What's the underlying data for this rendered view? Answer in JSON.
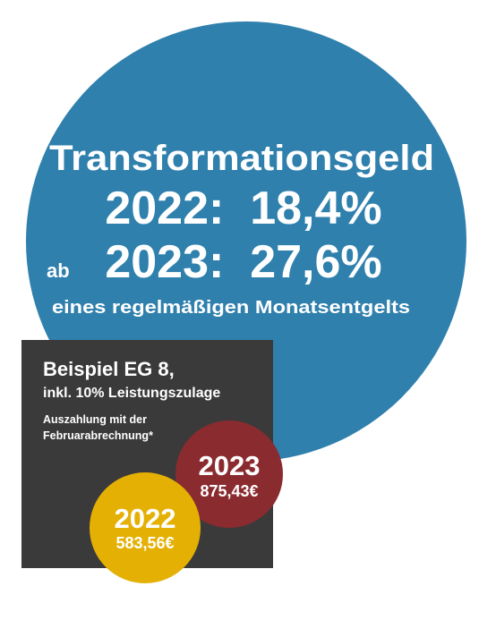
{
  "headline": {
    "title": "Transformationsgeld",
    "line_2022": "2022:  18,4%",
    "prefix_2023": "ab",
    "line_2023": "2023:  27,6%",
    "subtitle": "eines regelmäßigen Monatsentgelts"
  },
  "example": {
    "title": "Beispiel EG 8,",
    "subtitle": "inkl. 10% Leistungszulage",
    "note_line_1": "Auszahlung mit der",
    "note_line_2": "Februarabrechnung*"
  },
  "payments": [
    {
      "year": "2023",
      "amount": "875,43€"
    },
    {
      "year": "2022",
      "amount": "583,56€"
    }
  ]
}
